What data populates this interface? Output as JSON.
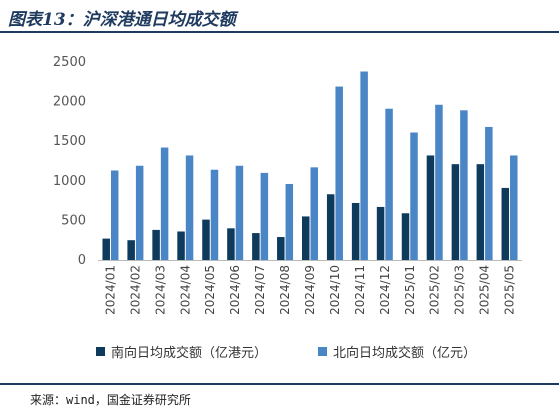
{
  "header": {
    "title": "图表13：沪深港通日均成交额"
  },
  "source": {
    "text": "来源：wind，国金证券研究所"
  },
  "colors": {
    "south": "#0e3a5c",
    "north": "#4a86c5",
    "title": "#1f3a5f"
  },
  "chart_data": {
    "type": "bar",
    "title": "图表13：沪深港通日均成交额",
    "xlabel": "",
    "ylabel": "",
    "ylim": [
      0,
      2500
    ],
    "yticks": [
      0,
      500,
      1000,
      1500,
      2000,
      2500
    ],
    "grid": false,
    "legend_position": "bottom",
    "categories": [
      "2024/01",
      "2024/02",
      "2024/03",
      "2024/04",
      "2024/05",
      "2024/06",
      "2024/07",
      "2024/08",
      "2024/09",
      "2024/10",
      "2024/11",
      "2024/12",
      "2025/01",
      "2025/02",
      "2025/03",
      "2025/04",
      "2025/05"
    ],
    "series": [
      {
        "name": "南向日均成交额（亿港元）",
        "color": "#0e3a5c",
        "values": [
          270,
          250,
          380,
          360,
          510,
          400,
          340,
          290,
          550,
          830,
          720,
          670,
          590,
          1320,
          1210,
          1210,
          910
        ]
      },
      {
        "name": "北向日均成交额（亿元）",
        "color": "#4a86c5",
        "values": [
          1130,
          1190,
          1420,
          1320,
          1140,
          1190,
          1100,
          960,
          1170,
          2190,
          2380,
          1910,
          1610,
          1960,
          1890,
          1680,
          1320
        ]
      }
    ]
  }
}
